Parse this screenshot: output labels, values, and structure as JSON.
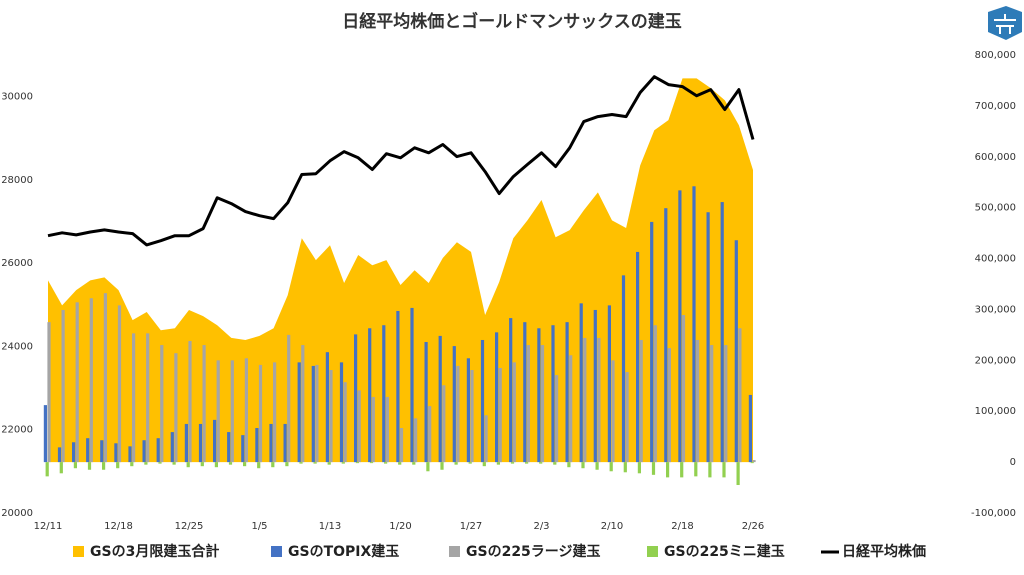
{
  "chart_data": {
    "type": "combo",
    "title": "日経平均株価とゴールドマンサックスの建玉",
    "categories": [
      "12/11",
      null,
      null,
      null,
      null,
      "12/18",
      null,
      null,
      null,
      null,
      "12/25",
      null,
      null,
      null,
      null,
      "1/5",
      null,
      null,
      null,
      null,
      "1/13",
      null,
      null,
      null,
      null,
      "1/20",
      null,
      null,
      null,
      null,
      "1/27",
      null,
      null,
      null,
      null,
      "2/3",
      null,
      null,
      null,
      null,
      "2/10",
      null,
      null,
      null,
      null,
      "2/18",
      null,
      null,
      null,
      null,
      "2/26"
    ],
    "ylim": [
      20000,
      31000
    ],
    "yticks": [
      20000,
      22000,
      24000,
      26000,
      28000,
      30000
    ],
    "y2lim": [
      -100000,
      800000
    ],
    "y2ticks": [
      {
        "value": -100000,
        "label": "-100,000",
        "color": "#e00000"
      },
      0,
      {
        "value": 100000,
        "label": "100,000"
      },
      {
        "value": 200000,
        "label": "200,000"
      },
      {
        "value": 300000,
        "label": "300,000"
      },
      {
        "value": 400000,
        "label": "400,000"
      },
      {
        "value": 500000,
        "label": "500,000"
      },
      {
        "value": 600000,
        "label": "600,000"
      },
      {
        "value": 700000,
        "label": "700,000"
      },
      {
        "value": 800000,
        "label": "800,000"
      }
    ],
    "legend": "bottom",
    "series": [
      {
        "name": "GSの3月限建玉合計",
        "kind": "area",
        "axis": "y2",
        "color": "#ffc000",
        "values": [
          357000,
          308000,
          338000,
          357000,
          363000,
          338000,
          279000,
          295000,
          259000,
          263000,
          299000,
          287000,
          269000,
          244000,
          240000,
          248000,
          263000,
          328000,
          440000,
          397000,
          426000,
          352000,
          407000,
          387000,
          397000,
          348000,
          377000,
          352000,
          401000,
          432000,
          413000,
          289000,
          354000,
          440000,
          475000,
          515000,
          442000,
          456000,
          495000,
          530000,
          475000,
          460000,
          583000,
          652000,
          672000,
          754000,
          754000,
          735000,
          711000,
          662000,
          574000
        ]
      },
      {
        "name": "GSのTOPIX建玉",
        "kind": "bar",
        "axis": "y2",
        "color": "#4472c4",
        "values": [
          112000,
          29000,
          39000,
          47000,
          43000,
          37000,
          31000,
          43000,
          47000,
          59000,
          75000,
          75000,
          83000,
          59000,
          53000,
          67000,
          75000,
          75000,
          196000,
          189000,
          216000,
          196000,
          251000,
          263000,
          269000,
          297000,
          303000,
          236000,
          248000,
          228000,
          204000,
          240000,
          255000,
          283000,
          275000,
          263000,
          269000,
          275000,
          312000,
          299000,
          308000,
          367000,
          413000,
          472000,
          499000,
          534000,
          542000,
          491000,
          511000,
          436000,
          132000
        ]
      },
      {
        "name": "GSの225ラージ建玉",
        "kind": "bar",
        "axis": "y2",
        "color": "#a5a5a5",
        "values": [
          275000,
          299000,
          314000,
          322000,
          332000,
          308000,
          253000,
          253000,
          230000,
          214000,
          238000,
          230000,
          200000,
          200000,
          204000,
          191000,
          196000,
          250000,
          230000,
          191000,
          181000,
          157000,
          141000,
          128000,
          128000,
          67000,
          86000,
          110000,
          151000,
          189000,
          181000,
          92000,
          185000,
          196000,
          230000,
          230000,
          171000,
          210000,
          244000,
          244000,
          200000,
          177000,
          240000,
          269000,
          224000,
          289000,
          240000,
          230000,
          230000,
          263000,
          4000
        ]
      },
      {
        "name": "GSの225ミニ建玉",
        "kind": "bar",
        "axis": "y2",
        "color": "#92d050",
        "values": [
          -28000,
          -22000,
          -12000,
          -15000,
          -15000,
          -12000,
          -8000,
          -5000,
          -3000,
          -5000,
          -10000,
          -8000,
          -10000,
          -5000,
          -8000,
          -12000,
          -10000,
          -8000,
          -3000,
          -3000,
          -5000,
          -3000,
          -2000,
          -2000,
          -3000,
          -5000,
          -5000,
          -18000,
          -15000,
          -5000,
          -3000,
          -8000,
          -5000,
          -3000,
          -3000,
          -3000,
          -5000,
          -10000,
          -12000,
          -15000,
          -18000,
          -20000,
          -22000,
          -25000,
          -30000,
          -30000,
          -28000,
          -30000,
          -30000,
          -45000,
          -2000
        ]
      },
      {
        "name": "日経平均株価",
        "kind": "line",
        "color": "#000000",
        "values": [
          26660,
          26730,
          26680,
          26750,
          26800,
          26750,
          26710,
          26440,
          26540,
          26660,
          26660,
          26830,
          27570,
          27430,
          27240,
          27140,
          27070,
          27450,
          28130,
          28150,
          28460,
          28680,
          28530,
          28250,
          28630,
          28530,
          28770,
          28650,
          28850,
          28560,
          28650,
          28200,
          27670,
          28080,
          28370,
          28650,
          28320,
          28770,
          29400,
          29520,
          29570,
          29520,
          30100,
          30480,
          30290,
          30240,
          30020,
          30170,
          29690,
          30170,
          28970
        ]
      }
    ]
  }
}
